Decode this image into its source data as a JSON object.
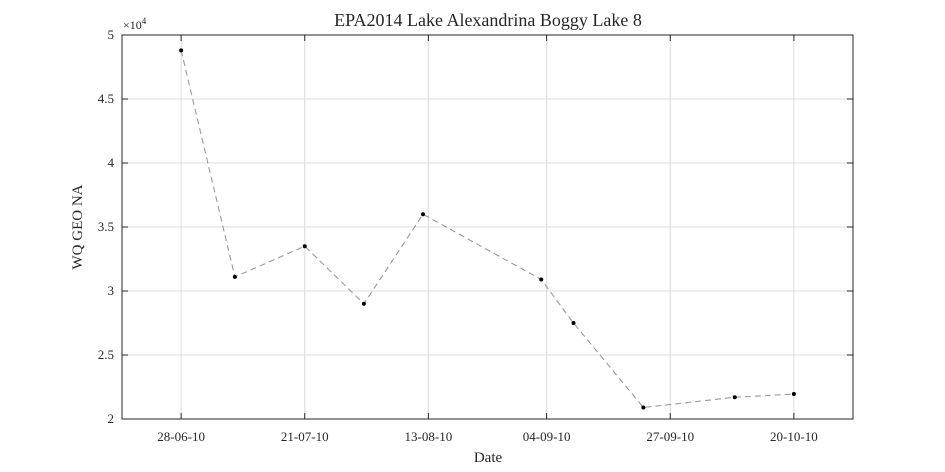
{
  "chart_data": {
    "type": "line",
    "title": "EPA2014 Lake Alexandrina Boggy Lake 8",
    "xlabel": "Date",
    "ylabel": "WQ GEO NA",
    "y_exponent_label": "×10",
    "y_exponent_power": "4",
    "x_tick_labels": [
      "28-06-10",
      "21-07-10",
      "13-08-10",
      "04-09-10",
      "27-09-10",
      "20-10-10"
    ],
    "x_tick_dates": [
      "2010-06-28",
      "2010-07-21",
      "2010-08-13",
      "2010-09-04",
      "2010-09-27",
      "2010-10-20"
    ],
    "xlim": [
      "2010-06-17",
      "2010-10-31"
    ],
    "y_tick_labels": [
      "2",
      "2.5",
      "3",
      "3.5",
      "4",
      "4.5",
      "5"
    ],
    "y_tick_values": [
      20000,
      25000,
      30000,
      35000,
      40000,
      45000,
      50000
    ],
    "ylim": [
      20000,
      50000
    ],
    "grid": true,
    "line_style": "dashed",
    "line_color": "#9a9a9a",
    "marker_color": "#000000",
    "series": [
      {
        "x": [
          "2010-06-28",
          "2010-07-08",
          "2010-07-21",
          "2010-08-01",
          "2010-08-12",
          "2010-09-03",
          "2010-09-09",
          "2010-09-22",
          "2010-10-09",
          "2010-10-20"
        ],
        "y": [
          48800,
          31100,
          33500,
          29000,
          36000,
          30900,
          27500,
          20900,
          21700,
          21950
        ]
      }
    ]
  }
}
